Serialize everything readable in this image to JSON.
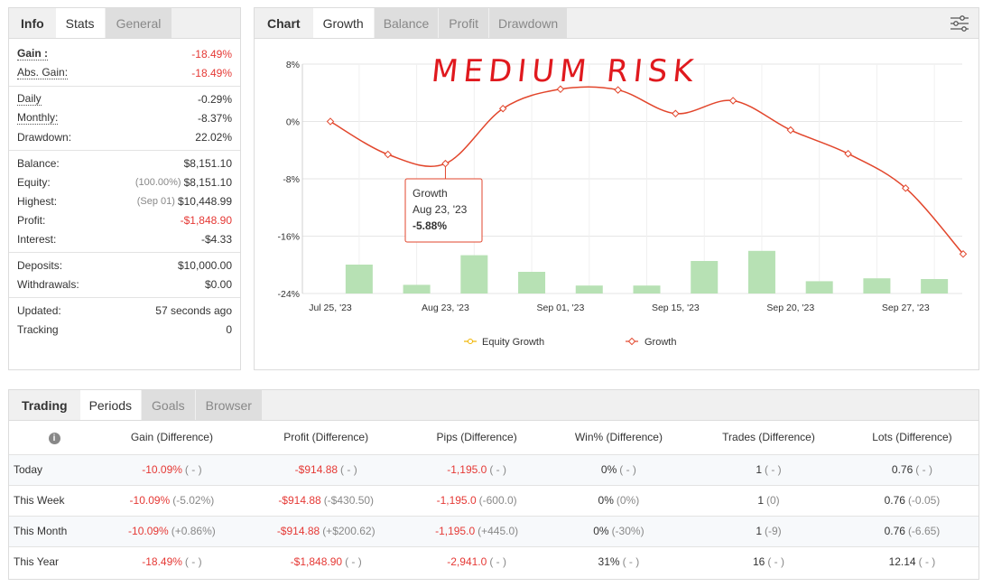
{
  "info_panel": {
    "tabs": [
      "Info",
      "Stats",
      "General"
    ],
    "groups": [
      [
        {
          "label": "Gain :",
          "value": "-18.49%",
          "red": true,
          "dotted": true,
          "bold": true
        },
        {
          "label": "Abs. Gain:",
          "value": "-18.49%",
          "red": true,
          "dotted": true
        }
      ],
      [
        {
          "label": "Daily",
          "value": "-0.29%",
          "dotted": true
        },
        {
          "label": "Monthly:",
          "value": "-8.37%",
          "dotted": true
        },
        {
          "label": "Drawdown:",
          "value": "22.02%"
        }
      ],
      [
        {
          "label": "Balance:",
          "value": "$8,151.10"
        },
        {
          "label": "Equity:",
          "sub": "(100.00%)",
          "value": "$8,151.10"
        },
        {
          "label": "Highest:",
          "sub": "(Sep 01)",
          "value": "$10,448.99"
        },
        {
          "label": "Profit:",
          "value": "-$1,848.90",
          "red": true
        },
        {
          "label": "Interest:",
          "value": "-$4.33"
        }
      ],
      [
        {
          "label": "Deposits:",
          "value": "$10,000.00"
        },
        {
          "label": "Withdrawals:",
          "value": "$0.00"
        }
      ],
      [
        {
          "label": "Updated:",
          "value": "57 seconds ago"
        },
        {
          "label": "Tracking",
          "value": "0"
        }
      ]
    ]
  },
  "chart_panel": {
    "tabs": [
      "Chart",
      "Growth",
      "Balance",
      "Profit",
      "Drawdown"
    ],
    "handwritten_note": "MEDIUM RISK",
    "tooltip": {
      "title": "Growth",
      "date": "Aug 23, '23",
      "value": "-5.88%"
    },
    "legend": [
      "Equity Growth",
      "Growth"
    ]
  },
  "chart_data": {
    "type": "line",
    "y_ticks": [
      "8%",
      "0%",
      "-8%",
      "-16%",
      "-24%"
    ],
    "ylim": [
      -24,
      8
    ],
    "x_ticks": [
      "Jul 25, '23",
      "Aug 23, '23",
      "Sep 01, '23",
      "Sep 15, '23",
      "Sep 20, '23",
      "Sep 27, '23"
    ],
    "series": [
      {
        "name": "Growth",
        "color": "#e2462c",
        "values": [
          0,
          -4.6,
          -5.88,
          1.8,
          4.5,
          4.4,
          1.1,
          2.9,
          -1.2,
          -4.5,
          -9.3,
          -18.49
        ]
      }
    ],
    "bars": {
      "color": "#b7e1b4",
      "values": [
        4.0,
        1.2,
        5.3,
        3.0,
        1.1,
        1.1,
        4.5,
        5.9,
        1.7,
        2.1,
        2.0
      ]
    },
    "legend_placement": "bottom"
  },
  "trading_panel": {
    "tabs": [
      "Trading",
      "Periods",
      "Goals",
      "Browser"
    ],
    "columns": [
      "Gain (Difference)",
      "Profit (Difference)",
      "Pips (Difference)",
      "Win% (Difference)",
      "Trades (Difference)",
      "Lots (Difference)"
    ],
    "rows": [
      {
        "period": "Today",
        "gain": "-10.09%",
        "gain_d": "( - )",
        "profit": "-$914.88",
        "profit_d": "( - )",
        "pips": "-1,195.0",
        "pips_d": "( - )",
        "win": "0%",
        "win_d": "( - )",
        "trades": "1",
        "trades_d": "( - )",
        "lots": "0.76",
        "lots_d": "( - )"
      },
      {
        "period": "This Week",
        "gain": "-10.09%",
        "gain_d": "(-5.02%)",
        "profit": "-$914.88",
        "profit_d": "(-$430.50)",
        "pips": "-1,195.0",
        "pips_d": "(-600.0)",
        "win": "0%",
        "win_d": "(0%)",
        "trades": "1",
        "trades_d": "(0)",
        "lots": "0.76",
        "lots_d": "(-0.05)"
      },
      {
        "period": "This Month",
        "gain": "-10.09%",
        "gain_d": "(+0.86%)",
        "profit": "-$914.88",
        "profit_d": "(+$200.62)",
        "pips": "-1,195.0",
        "pips_d": "(+445.0)",
        "win": "0%",
        "win_d": "(-30%)",
        "trades": "1",
        "trades_d": "(-9)",
        "lots": "0.76",
        "lots_d": "(-6.65)"
      },
      {
        "period": "This Year",
        "gain": "-18.49%",
        "gain_d": "( - )",
        "profit": "-$1,848.90",
        "profit_d": "( - )",
        "pips": "-2,941.0",
        "pips_d": "( - )",
        "win": "31%",
        "win_d": "( - )",
        "trades": "16",
        "trades_d": "( - )",
        "lots": "12.14",
        "lots_d": "( - )"
      }
    ]
  }
}
